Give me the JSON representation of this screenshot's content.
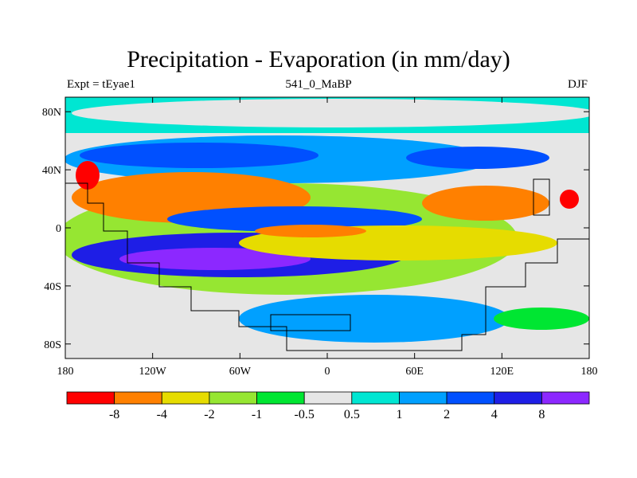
{
  "title": "Precipitation - Evaporation (in mm/day)",
  "subtitle_left": "Expt = tEyae1",
  "subtitle_center": "541_0_MaBP",
  "subtitle_right": "DJF",
  "map": {
    "lat_ticks": [
      "80N",
      "40N",
      "0",
      "40S",
      "80S"
    ],
    "lat_values": [
      80,
      40,
      0,
      -40,
      -80
    ],
    "lon_ticks": [
      "180",
      "120W",
      "60W",
      "0",
      "60E",
      "120E",
      "180"
    ],
    "lon_values": [
      -180,
      -120,
      -60,
      0,
      60,
      120,
      180
    ]
  },
  "colorbar": {
    "colors": [
      "#ff0000",
      "#ff8000",
      "#e6dc00",
      "#96e632",
      "#00e632",
      "#e6e6e6",
      "#00e6d2",
      "#00a0ff",
      "#0050ff",
      "#1e1ee6",
      "#8c28ff"
    ],
    "labels": [
      "-8",
      "-4",
      "-2",
      "-1",
      "-0.5",
      "0.5",
      "1",
      "2",
      "4",
      "8"
    ]
  }
}
